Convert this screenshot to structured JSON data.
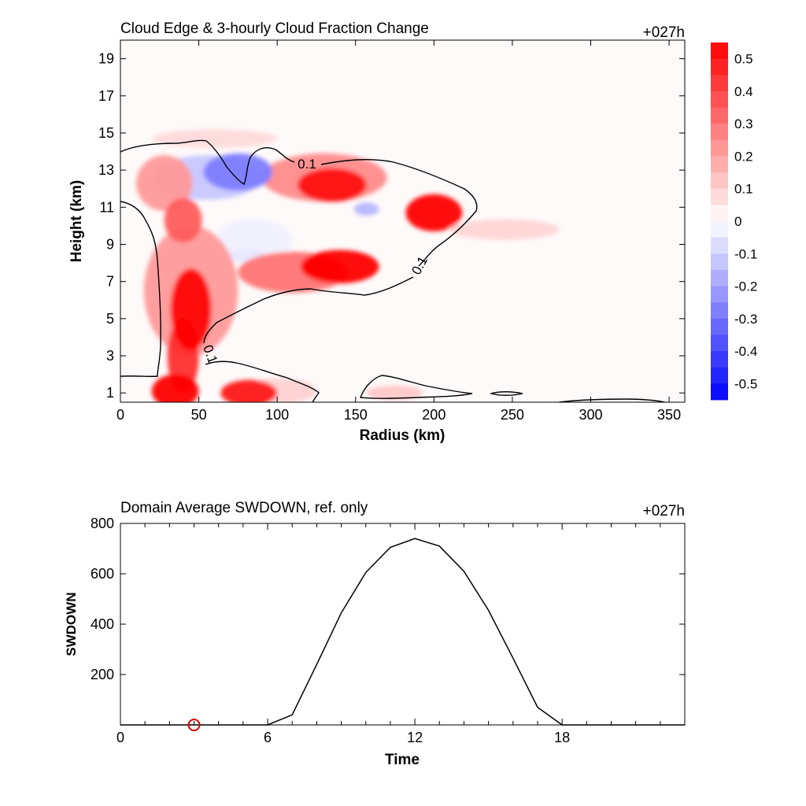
{
  "chart_data": [
    {
      "type": "heatmap",
      "title": "Cloud Edge & 3-hourly Cloud Fraction Change",
      "time_label": "+027h",
      "xlabel": "Radius (km)",
      "ylabel": "Height (km)",
      "xlim": [
        0,
        360
      ],
      "ylim": [
        0.5,
        20
      ],
      "xticks": [
        0,
        50,
        100,
        150,
        200,
        250,
        300,
        350
      ],
      "yticks": [
        1,
        3,
        5,
        7,
        9,
        11,
        13,
        15,
        17,
        19
      ],
      "contour_level": "0.1",
      "colorbar": {
        "ticks": [
          "0.5",
          "0.4",
          "0.3",
          "0.2",
          "0.1",
          "0",
          "-0.1",
          "-0.2",
          "-0.3",
          "-0.4",
          "-0.5"
        ],
        "range": [
          -0.55,
          0.55
        ],
        "positive_color": "#ff0000",
        "negative_color": "#0000ff"
      },
      "features": [
        {
          "x": 75,
          "y": 12.9,
          "rx": 22,
          "ry": 1.0,
          "value": -0.28
        },
        {
          "x": 55,
          "y": 12.6,
          "rx": 35,
          "ry": 1.2,
          "value": -0.12
        },
        {
          "x": 157,
          "y": 10.9,
          "rx": 8,
          "ry": 0.35,
          "value": -0.16
        },
        {
          "x": 80,
          "y": 8.4,
          "rx": 12,
          "ry": 0.4,
          "value": -0.05
        },
        {
          "x": 135,
          "y": 12.2,
          "rx": 22,
          "ry": 0.9,
          "value": 0.52
        },
        {
          "x": 130,
          "y": 12.6,
          "rx": 40,
          "ry": 1.3,
          "value": 0.25
        },
        {
          "x": 200,
          "y": 10.7,
          "rx": 18,
          "ry": 1.0,
          "value": 0.6
        },
        {
          "x": 245,
          "y": 9.8,
          "rx": 35,
          "ry": 0.55,
          "value": 0.09
        },
        {
          "x": 140,
          "y": 7.8,
          "rx": 25,
          "ry": 0.9,
          "value": 0.55
        },
        {
          "x": 110,
          "y": 7.5,
          "rx": 35,
          "ry": 1.1,
          "value": 0.3
        },
        {
          "x": 45,
          "y": 5.5,
          "rx": 13,
          "ry": 2.2,
          "value": 0.6
        },
        {
          "x": 45,
          "y": 6.5,
          "rx": 30,
          "ry": 3.5,
          "value": 0.22
        },
        {
          "x": 40,
          "y": 3.0,
          "rx": 10,
          "ry": 2.0,
          "value": 0.45
        },
        {
          "x": 35,
          "y": 1.1,
          "rx": 15,
          "ry": 0.9,
          "value": 0.65
        },
        {
          "x": 82,
          "y": 1.0,
          "rx": 18,
          "ry": 0.7,
          "value": 0.5
        },
        {
          "x": 100,
          "y": 1.1,
          "rx": 25,
          "ry": 0.7,
          "value": 0.1
        },
        {
          "x": 28,
          "y": 12.3,
          "rx": 18,
          "ry": 1.5,
          "value": 0.22
        },
        {
          "x": 60,
          "y": 14.7,
          "rx": 40,
          "ry": 0.5,
          "value": 0.08
        },
        {
          "x": 85,
          "y": 9.2,
          "rx": 25,
          "ry": 1.2,
          "value": -0.03
        },
        {
          "x": 175,
          "y": 1.0,
          "rx": 18,
          "ry": 0.4,
          "value": 0.12
        },
        {
          "x": 40,
          "y": 10.3,
          "rx": 12,
          "ry": 1.2,
          "value": 0.35
        }
      ]
    },
    {
      "type": "line",
      "title": "Domain Average SWDOWN, ref. only",
      "time_label": "+027h",
      "xlabel": "Time",
      "ylabel": "SWDOWN",
      "xlim": [
        0,
        23
      ],
      "ylim": [
        0,
        800
      ],
      "xticks": [
        0,
        6,
        12,
        18
      ],
      "yticks": [
        200,
        400,
        600,
        800
      ],
      "series": [
        {
          "x": [
            0,
            1,
            2,
            3,
            4,
            5,
            6,
            7,
            8,
            9,
            10,
            11,
            12,
            13,
            14,
            15,
            16,
            17,
            18,
            19,
            20,
            21,
            22,
            23
          ],
          "values": [
            0,
            0,
            0,
            0,
            0,
            0,
            0,
            40,
            240,
            445,
            605,
            705,
            740,
            710,
            610,
            455,
            265,
            70,
            0,
            0,
            0,
            0,
            0,
            0
          ],
          "color": "#000000"
        }
      ],
      "marker": {
        "x": 3,
        "y": 0,
        "color": "#dd0000"
      }
    }
  ]
}
